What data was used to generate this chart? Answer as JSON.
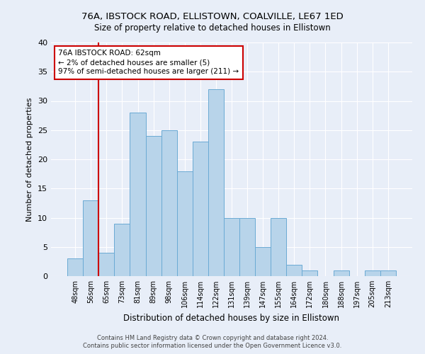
{
  "title_line1": "76A, IBSTOCK ROAD, ELLISTOWN, COALVILLE, LE67 1ED",
  "title_line2": "Size of property relative to detached houses in Ellistown",
  "xlabel": "Distribution of detached houses by size in Ellistown",
  "ylabel": "Number of detached properties",
  "categories": [
    "48sqm",
    "56sqm",
    "65sqm",
    "73sqm",
    "81sqm",
    "89sqm",
    "98sqm",
    "106sqm",
    "114sqm",
    "122sqm",
    "131sqm",
    "139sqm",
    "147sqm",
    "155sqm",
    "164sqm",
    "172sqm",
    "180sqm",
    "188sqm",
    "197sqm",
    "205sqm",
    "213sqm"
  ],
  "values": [
    3,
    13,
    4,
    9,
    28,
    24,
    25,
    18,
    23,
    32,
    10,
    10,
    5,
    10,
    2,
    1,
    0,
    1,
    0,
    1,
    1
  ],
  "bar_color": "#b8d4ea",
  "bar_edge_color": "#6aaad4",
  "vline_color": "#cc0000",
  "vline_x": 1.5,
  "annotation_text_line1": "76A IBSTOCK ROAD: 62sqm",
  "annotation_text_line2": "← 2% of detached houses are smaller (5)",
  "annotation_text_line3": "97% of semi-detached houses are larger (211) →",
  "ylim": [
    0,
    40
  ],
  "yticks": [
    0,
    5,
    10,
    15,
    20,
    25,
    30,
    35,
    40
  ],
  "footer_line1": "Contains HM Land Registry data © Crown copyright and database right 2024.",
  "footer_line2": "Contains public sector information licensed under the Open Government Licence v3.0.",
  "background_color": "#e8eef8",
  "grid_color": "#ffffff",
  "annotation_box_facecolor": "#ffffff",
  "annotation_box_edgecolor": "#cc0000",
  "title1_fontsize": 9.5,
  "title2_fontsize": 8.5,
  "ylabel_fontsize": 8,
  "xlabel_fontsize": 8.5,
  "tick_fontsize": 7,
  "footer_fontsize": 6,
  "annotation_fontsize": 7.5
}
